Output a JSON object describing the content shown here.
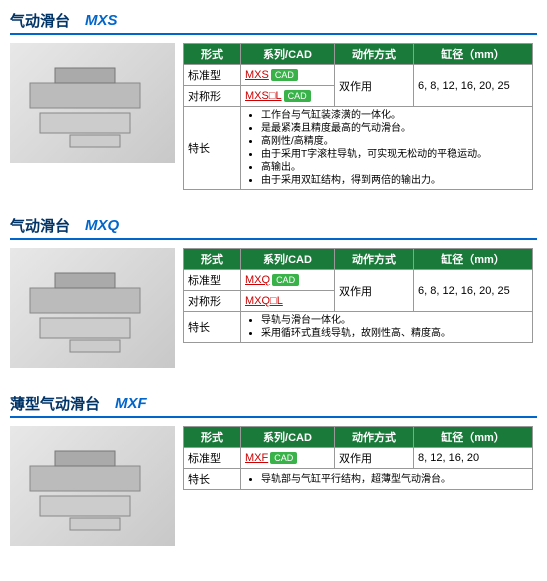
{
  "sections": [
    {
      "title_cn": "气动滑台",
      "title_model": "MXS",
      "headers": {
        "form": "形式",
        "series": "系列/CAD",
        "action": "动作方式",
        "bore": "缸径（mm）"
      },
      "rows": [
        {
          "form": "标准型",
          "series": "MXS",
          "series_has_cad": true
        },
        {
          "form": "对称形",
          "series": "MXS□L",
          "series_has_cad": true
        }
      ],
      "action": "双作用",
      "bore": "6, 8, 12, 16, 20, 25",
      "feature_label": "特长",
      "features": [
        "工作台与气缸装漆潢的一体化。",
        "是最紧凑且精度最高的气动滑台。",
        "高刚性/高精度。",
        "由于采用T字滚柱导轨，可实现无松动的平稳运动。",
        "高输出。",
        "由于采用双缸结构，得到两倍的输出力。"
      ]
    },
    {
      "title_cn": "气动滑台",
      "title_model": "MXQ",
      "headers": {
        "form": "形式",
        "series": "系列/CAD",
        "action": "动作方式",
        "bore": "缸径（mm）"
      },
      "rows": [
        {
          "form": "标准型",
          "series": "MXQ",
          "series_has_cad": true
        },
        {
          "form": "对称形",
          "series": "MXQ□L",
          "series_has_cad": false
        }
      ],
      "action": "双作用",
      "bore": "6, 8, 12, 16, 20, 25",
      "feature_label": "特长",
      "features": [
        "导轨与滑台一体化。",
        "采用循环式直线导轨，故刚性高、精度高。"
      ]
    },
    {
      "title_cn": "薄型气动滑台",
      "title_model": "MXF",
      "headers": {
        "form": "形式",
        "series": "系列/CAD",
        "action": "动作方式",
        "bore": "缸径（mm）"
      },
      "rows": [
        {
          "form": "标准型",
          "series": "MXF",
          "series_has_cad": true
        }
      ],
      "action": "双作用",
      "bore": "8, 12, 16, 20",
      "feature_label": "特长",
      "features": [
        "导轨部与气缸平行结构，超薄型气动滑台。"
      ]
    }
  ],
  "cad_label": "CAD"
}
